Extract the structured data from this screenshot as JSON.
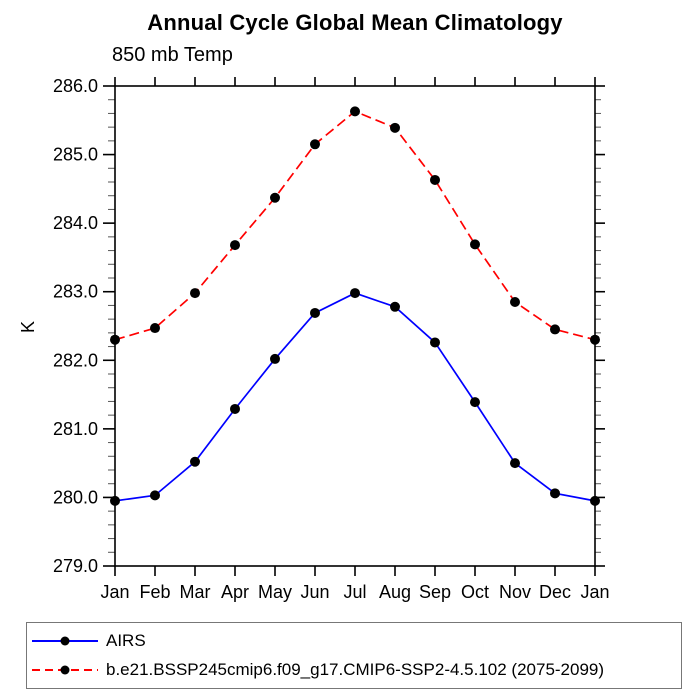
{
  "chart_data": {
    "type": "line",
    "title": "Annual Cycle Global Mean Climatology",
    "subtitle": "850 mb Temp",
    "xlabel": "",
    "ylabel": "K",
    "categories": [
      "Jan",
      "Feb",
      "Mar",
      "Apr",
      "May",
      "Jun",
      "Jul",
      "Aug",
      "Sep",
      "Oct",
      "Nov",
      "Dec",
      "Jan"
    ],
    "ylim": [
      279.0,
      286.0
    ],
    "y_major_step": 1.0,
    "y_minor_step": 0.2,
    "y_tick_labels": [
      "279.0",
      "280.0",
      "281.0",
      "282.0",
      "283.0",
      "284.0",
      "285.0",
      "286.0"
    ],
    "grid": false,
    "legend_position": "bottom-left",
    "frame_color": "#000000",
    "series": [
      {
        "name": "AIRS",
        "color": "#0000ff",
        "line_style": "solid",
        "marker": "filled-circle",
        "marker_color": "#000000",
        "values": [
          279.95,
          280.03,
          280.52,
          281.29,
          282.02,
          282.69,
          282.98,
          282.78,
          282.26,
          281.39,
          280.5,
          280.06,
          279.95
        ]
      },
      {
        "name": "b.e21.BSSP245cmip6.f09_g17.CMIP6-SSP2-4.5.102 (2075-2099)",
        "color": "#ff0000",
        "line_style": "dashed",
        "marker": "filled-circle",
        "marker_color": "#000000",
        "values": [
          282.3,
          282.47,
          282.98,
          283.68,
          284.37,
          285.15,
          285.63,
          285.39,
          284.63,
          283.69,
          282.85,
          282.45,
          282.3
        ]
      }
    ]
  }
}
